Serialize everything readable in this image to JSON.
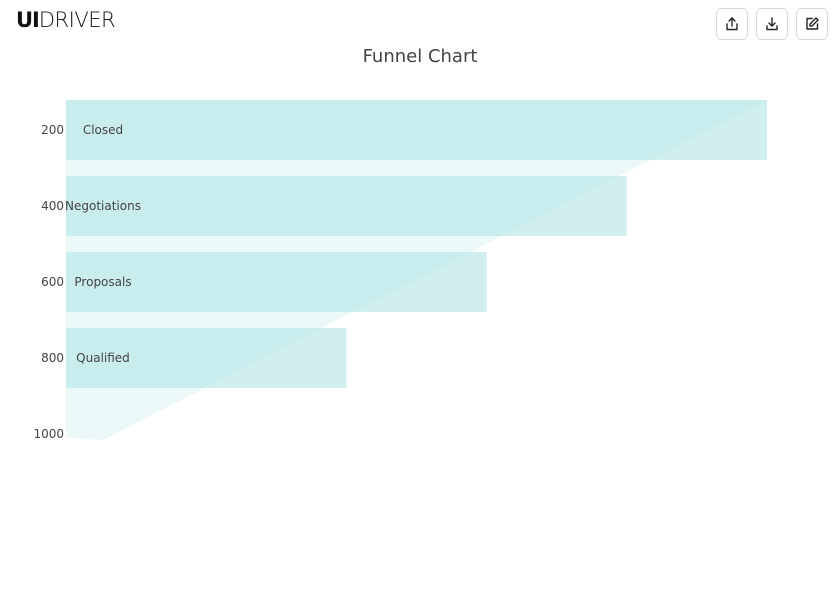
{
  "header": {
    "logo_bold": "UI",
    "logo_light": "DRIVER",
    "buttons": [
      {
        "icon": "share-icon"
      },
      {
        "icon": "download-icon"
      },
      {
        "icon": "edit-icon"
      }
    ]
  },
  "colors": {
    "bar": "#b2e4e4",
    "funnel": "#c8ecec"
  },
  "chart_data": {
    "type": "bar",
    "title": "Funnel Chart",
    "orientation": "horizontal",
    "categories": [
      "Closed",
      "Negotiations",
      "Proposals",
      "Qualified"
    ],
    "values": [
      1000,
      800,
      600,
      400
    ],
    "y_ticks": [
      200,
      400,
      600,
      800,
      1000
    ],
    "funnel_overlay": true,
    "grid": false,
    "legend": "none"
  }
}
